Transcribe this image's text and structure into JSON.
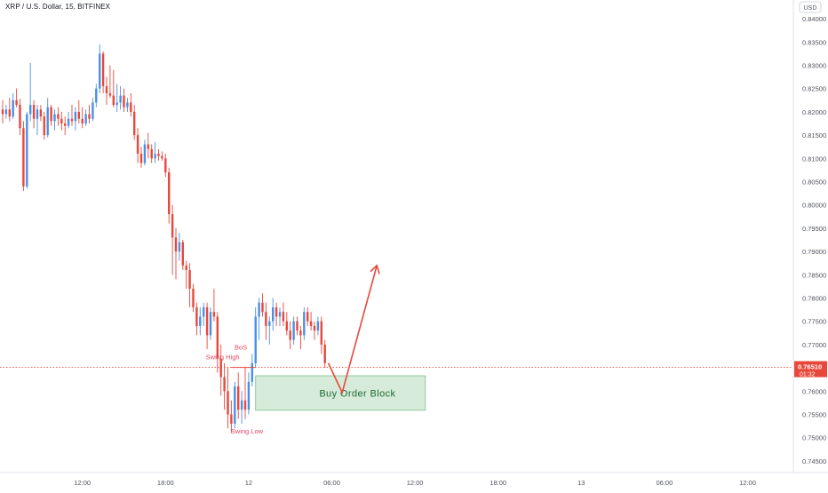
{
  "header": {
    "symbol_title": "XRP / U.S. Dollar, 15, BITFINEX"
  },
  "price_axis": {
    "currency_label": "USD",
    "current_price_label": "0.76510",
    "countdown_label": "01:32"
  },
  "colors": {
    "up": "#4a90e2",
    "down": "#e8473b",
    "annotation_red": "#e8473b",
    "swing_text": "#e04863",
    "order_block_fill": "#cfe8d2",
    "order_block_border": "#7bbf86",
    "order_block_text": "#1f6b33",
    "current_price_line": "#e8473b",
    "axis_text": "#50535e"
  },
  "annotations": {
    "bos": "BoS",
    "swing_high": "Swing High",
    "swing_low": "Swing Low",
    "order_block": "Buy Order Block"
  },
  "chart_data": {
    "type": "candlestick",
    "title": "XRP / U.S. Dollar, 15, BITFINEX",
    "interval": "15",
    "exchange": "BITFINEX",
    "y_unit": "USD",
    "ylim": [
      0.7425,
      0.8425
    ],
    "y_ticks": [
      0.84,
      0.835,
      0.83,
      0.825,
      0.82,
      0.815,
      0.81,
      0.805,
      0.8,
      0.795,
      0.79,
      0.785,
      0.78,
      0.775,
      0.77,
      0.765,
      0.76,
      0.755,
      0.75,
      0.745
    ],
    "y_tick_labels": [
      "0.84000",
      "0.83500",
      "0.83000",
      "0.82500",
      "0.82000",
      "0.81500",
      "0.81000",
      "0.80500",
      "0.80000",
      "0.79500",
      "0.79000",
      "0.78500",
      "0.78000",
      "0.77500",
      "0.77000",
      "0.76500",
      "0.76000",
      "0.75500",
      "0.75000",
      "0.74500"
    ],
    "x_ticks": [
      {
        "bar": 23,
        "label": "12:00"
      },
      {
        "bar": 47,
        "label": "18:00"
      },
      {
        "bar": 71,
        "label": "12"
      },
      {
        "bar": 95,
        "label": "06:00"
      },
      {
        "bar": 119,
        "label": "12:00"
      },
      {
        "bar": 143,
        "label": "18:00"
      },
      {
        "bar": 167,
        "label": "13"
      },
      {
        "bar": 191,
        "label": "06:00"
      },
      {
        "bar": 215,
        "label": "12:00"
      }
    ],
    "grid": false,
    "last_price": 0.7651,
    "candles": [
      [
        0.8205,
        0.8225,
        0.8175,
        0.8195
      ],
      [
        0.8195,
        0.8215,
        0.8185,
        0.8205
      ],
      [
        0.8205,
        0.823,
        0.818,
        0.819
      ],
      [
        0.819,
        0.824,
        0.8185,
        0.8225
      ],
      [
        0.8225,
        0.825,
        0.821,
        0.8215
      ],
      [
        0.8215,
        0.8228,
        0.815,
        0.8165
      ],
      [
        0.8165,
        0.818,
        0.803,
        0.804
      ],
      [
        0.804,
        0.82,
        0.8035,
        0.8195
      ],
      [
        0.8195,
        0.8305,
        0.818,
        0.8215
      ],
      [
        0.8215,
        0.8225,
        0.8165,
        0.8185
      ],
      [
        0.8185,
        0.8215,
        0.815,
        0.8205
      ],
      [
        0.8205,
        0.8215,
        0.818,
        0.819
      ],
      [
        0.819,
        0.82,
        0.814,
        0.815
      ],
      [
        0.815,
        0.823,
        0.8145,
        0.821
      ],
      [
        0.821,
        0.8215,
        0.817,
        0.818
      ],
      [
        0.818,
        0.8205,
        0.816,
        0.8195
      ],
      [
        0.8195,
        0.821,
        0.817,
        0.8185
      ],
      [
        0.8185,
        0.82,
        0.816,
        0.8175
      ],
      [
        0.8175,
        0.819,
        0.815,
        0.817
      ],
      [
        0.817,
        0.82,
        0.8165,
        0.8185
      ],
      [
        0.8185,
        0.8215,
        0.817,
        0.818
      ],
      [
        0.818,
        0.821,
        0.816,
        0.82
      ],
      [
        0.82,
        0.8225,
        0.8175,
        0.8185
      ],
      [
        0.8185,
        0.821,
        0.8165,
        0.8175
      ],
      [
        0.8175,
        0.8205,
        0.817,
        0.8195
      ],
      [
        0.8195,
        0.8215,
        0.8175,
        0.8185
      ],
      [
        0.8185,
        0.823,
        0.818,
        0.822
      ],
      [
        0.822,
        0.826,
        0.821,
        0.825
      ],
      [
        0.825,
        0.8345,
        0.824,
        0.8325
      ],
      [
        0.8325,
        0.833,
        0.824,
        0.8255
      ],
      [
        0.8255,
        0.8275,
        0.8215,
        0.824
      ],
      [
        0.824,
        0.83,
        0.823,
        0.8235
      ],
      [
        0.8235,
        0.829,
        0.821,
        0.8215
      ],
      [
        0.8215,
        0.826,
        0.82,
        0.822
      ],
      [
        0.822,
        0.8255,
        0.8205,
        0.8235
      ],
      [
        0.8235,
        0.825,
        0.82,
        0.821
      ],
      [
        0.821,
        0.823,
        0.82,
        0.822
      ],
      [
        0.822,
        0.824,
        0.819,
        0.82
      ],
      [
        0.82,
        0.8215,
        0.814,
        0.815
      ],
      [
        0.815,
        0.8165,
        0.809,
        0.811
      ],
      [
        0.811,
        0.8125,
        0.808,
        0.809
      ],
      [
        0.809,
        0.814,
        0.8085,
        0.813
      ],
      [
        0.813,
        0.8155,
        0.81,
        0.812
      ],
      [
        0.812,
        0.813,
        0.809,
        0.81
      ],
      [
        0.81,
        0.8135,
        0.809,
        0.811
      ],
      [
        0.811,
        0.812,
        0.8095,
        0.8105
      ],
      [
        0.8105,
        0.8115,
        0.8095,
        0.81
      ],
      [
        0.81,
        0.811,
        0.806,
        0.807
      ],
      [
        0.807,
        0.808,
        0.796,
        0.798
      ],
      [
        0.798,
        0.8,
        0.785,
        0.793
      ],
      [
        0.793,
        0.795,
        0.784,
        0.79
      ],
      [
        0.79,
        0.794,
        0.788,
        0.792
      ],
      [
        0.792,
        0.7925,
        0.786,
        0.787
      ],
      [
        0.787,
        0.788,
        0.782,
        0.786
      ],
      [
        0.786,
        0.7875,
        0.778,
        0.782
      ],
      [
        0.782,
        0.783,
        0.777,
        0.778
      ],
      [
        0.778,
        0.779,
        0.772,
        0.774
      ],
      [
        0.774,
        0.778,
        0.772,
        0.776
      ],
      [
        0.776,
        0.779,
        0.774,
        0.778
      ],
      [
        0.778,
        0.779,
        0.769,
        0.772
      ],
      [
        0.772,
        0.778,
        0.771,
        0.777
      ],
      [
        0.777,
        0.782,
        0.775,
        0.776
      ],
      [
        0.776,
        0.777,
        0.764,
        0.767
      ],
      [
        0.767,
        0.77,
        0.759,
        0.763
      ],
      [
        0.763,
        0.766,
        0.756,
        0.76
      ],
      [
        0.76,
        0.765,
        0.752,
        0.755
      ],
      [
        0.755,
        0.758,
        0.751,
        0.753
      ],
      [
        0.753,
        0.762,
        0.752,
        0.761
      ],
      [
        0.761,
        0.764,
        0.754,
        0.756
      ],
      [
        0.756,
        0.76,
        0.753,
        0.758
      ],
      [
        0.758,
        0.765,
        0.754,
        0.756
      ],
      [
        0.756,
        0.764,
        0.755,
        0.762
      ],
      [
        0.762,
        0.768,
        0.761,
        0.766
      ],
      [
        0.766,
        0.778,
        0.765,
        0.776
      ],
      [
        0.776,
        0.78,
        0.771,
        0.779
      ],
      [
        0.779,
        0.781,
        0.776,
        0.777
      ],
      [
        0.777,
        0.779,
        0.771,
        0.774
      ],
      [
        0.774,
        0.776,
        0.77,
        0.775
      ],
      [
        0.775,
        0.78,
        0.773,
        0.778
      ],
      [
        0.778,
        0.779,
        0.774,
        0.776
      ],
      [
        0.776,
        0.778,
        0.774,
        0.777
      ],
      [
        0.777,
        0.779,
        0.774,
        0.775
      ],
      [
        0.775,
        0.777,
        0.772,
        0.773
      ],
      [
        0.773,
        0.775,
        0.769,
        0.771
      ],
      [
        0.771,
        0.776,
        0.77,
        0.775
      ],
      [
        0.775,
        0.776,
        0.772,
        0.773
      ],
      [
        0.773,
        0.774,
        0.769,
        0.772
      ],
      [
        0.772,
        0.778,
        0.771,
        0.777
      ],
      [
        0.777,
        0.778,
        0.774,
        0.775
      ],
      [
        0.775,
        0.777,
        0.773,
        0.774
      ],
      [
        0.774,
        0.775,
        0.771,
        0.773
      ],
      [
        0.773,
        0.776,
        0.772,
        0.775
      ],
      [
        0.775,
        0.776,
        0.768,
        0.77
      ],
      [
        0.77,
        0.771,
        0.765,
        0.766
      ]
    ],
    "projection": [
      {
        "bar": 94,
        "price": 0.766
      },
      {
        "bar": 98,
        "price": 0.7597
      },
      {
        "bar": 108,
        "price": 0.787
      }
    ],
    "order_block": {
      "bar_start": 73,
      "bar_end": 122,
      "top": 0.7633,
      "bottom": 0.7559,
      "label": "Buy Order Block"
    },
    "swing_high": {
      "bar_start": 66,
      "bar_end": 73,
      "price": 0.7651,
      "label": "Swing High"
    },
    "bos_label": "BoS",
    "swing_low_label": "Swing Low"
  }
}
